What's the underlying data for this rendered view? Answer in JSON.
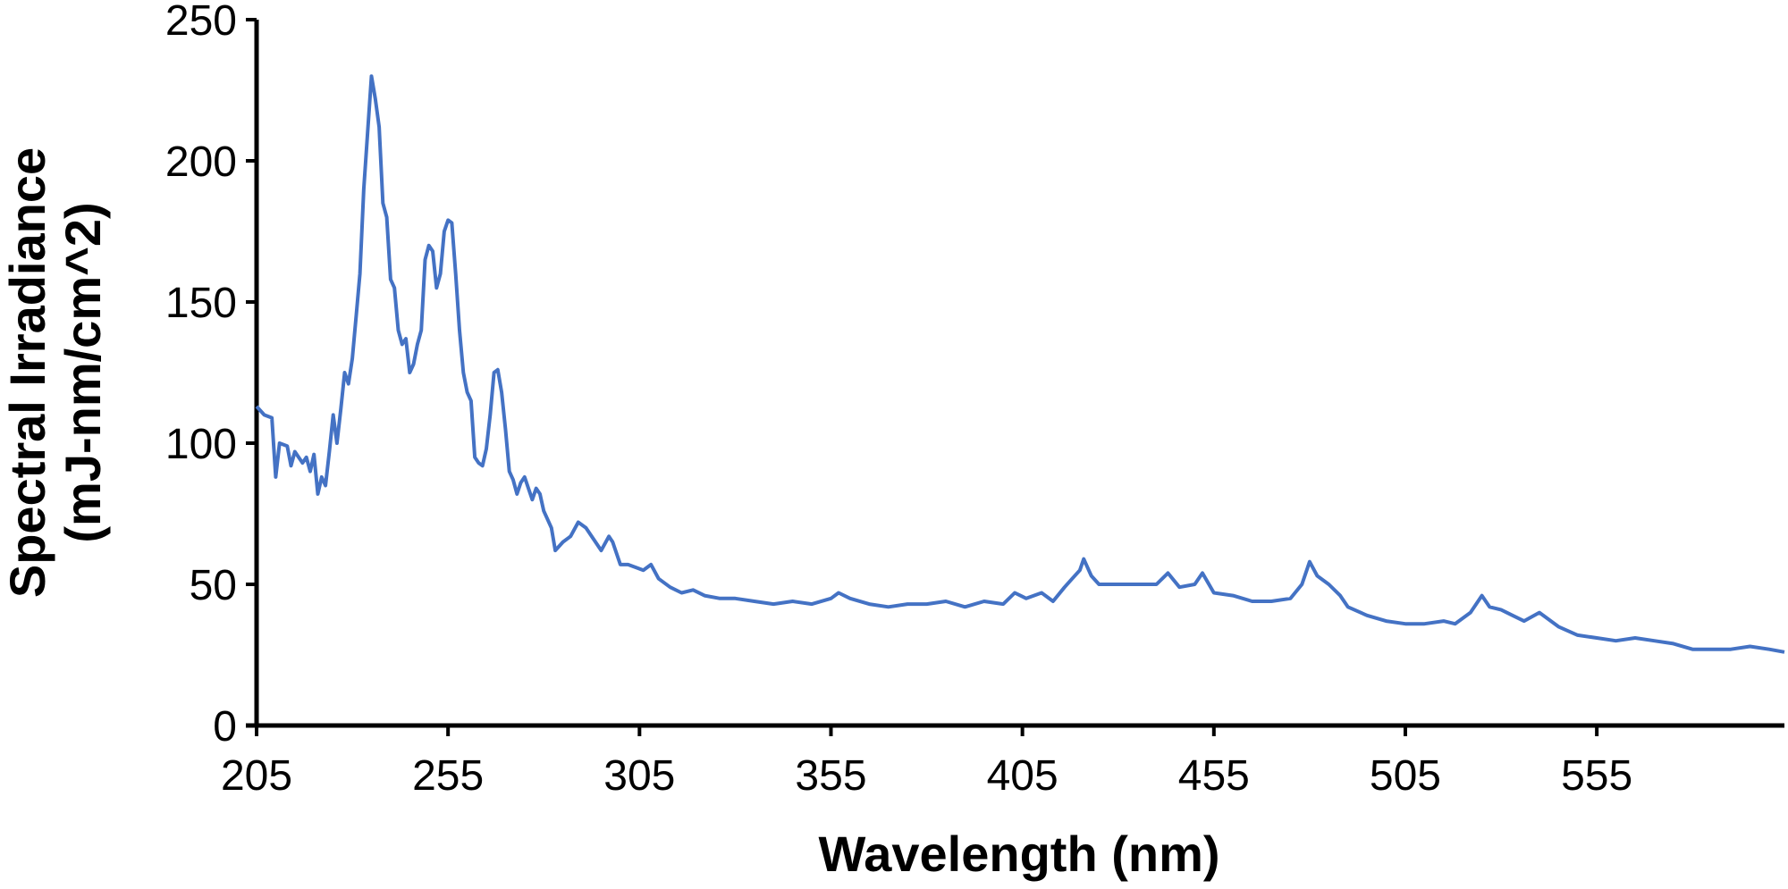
{
  "chart_data": {
    "type": "line",
    "x_label": "Wavelength (nm)",
    "y_label": [
      "Spectral Irradiance",
      "(mJ-nm/cm^2)"
    ],
    "xlim": [
      205,
      604
    ],
    "xticks": [
      205,
      255,
      305,
      355,
      405,
      455,
      505,
      555
    ],
    "ylim": [
      0,
      250
    ],
    "yticks": [
      0,
      50,
      100,
      150,
      200,
      250
    ],
    "grid": false,
    "series": [
      {
        "name": "Spectral irradiance",
        "color": "#4472c4",
        "x": [
          205,
          207,
          209,
          210,
          211,
          213,
          214,
          215,
          217,
          218,
          219,
          220,
          221,
          222,
          223,
          224,
          225,
          226,
          227,
          228,
          229,
          230,
          231,
          232,
          233,
          234,
          235,
          236,
          237,
          238,
          239,
          240,
          241,
          242,
          243,
          244,
          245,
          246,
          247,
          248,
          249,
          250,
          251,
          252,
          253,
          254,
          255,
          256,
          257,
          258,
          259,
          260,
          261,
          262,
          263,
          264,
          265,
          266,
          267,
          268,
          269,
          270,
          271,
          272,
          273,
          274,
          275,
          276,
          277,
          278,
          279,
          280,
          282,
          283,
          285,
          287,
          289,
          291,
          293,
          295,
          297,
          298,
          300,
          302,
          304,
          306,
          308,
          310,
          313,
          316,
          319,
          322,
          326,
          330,
          335,
          340,
          345,
          350,
          355,
          357,
          360,
          365,
          370,
          375,
          380,
          385,
          390,
          395,
          400,
          403,
          406,
          410,
          413,
          416,
          418,
          420,
          421,
          423,
          425,
          430,
          435,
          440,
          443,
          446,
          450,
          452,
          455,
          460,
          465,
          470,
          475,
          478,
          480,
          482,
          485,
          488,
          490,
          495,
          500,
          505,
          510,
          515,
          518,
          522,
          525,
          527,
          530,
          533,
          536,
          540,
          542,
          545,
          550,
          555,
          560,
          565,
          570,
          575,
          580,
          585,
          590,
          595,
          600,
          604
        ],
        "values": [
          113,
          110,
          109,
          88,
          100,
          99,
          92,
          97,
          93,
          95,
          90,
          96,
          82,
          88,
          85,
          97,
          110,
          100,
          112,
          125,
          121,
          130,
          145,
          160,
          190,
          210,
          230,
          222,
          212,
          185,
          180,
          158,
          155,
          140,
          135,
          137,
          125,
          128,
          135,
          140,
          165,
          170,
          168,
          155,
          160,
          175,
          179,
          178,
          160,
          140,
          125,
          118,
          115,
          95,
          93,
          92,
          98,
          110,
          125,
          126,
          118,
          105,
          90,
          87,
          82,
          86,
          88,
          84,
          80,
          84,
          82,
          76,
          70,
          62,
          65,
          67,
          72,
          70,
          66,
          62,
          67,
          65,
          57,
          57,
          56,
          55,
          57,
          52,
          49,
          47,
          48,
          46,
          45,
          45,
          44,
          43,
          44,
          43,
          45,
          47,
          45,
          43,
          42,
          43,
          43,
          44,
          42,
          44,
          43,
          47,
          45,
          47,
          44,
          49,
          52,
          55,
          59,
          53,
          50,
          50,
          50,
          50,
          54,
          49,
          50,
          54,
          47,
          46,
          44,
          44,
          45,
          50,
          58,
          53,
          50,
          46,
          42,
          39,
          37,
          36,
          36,
          37,
          36,
          40,
          46,
          42,
          41,
          39,
          37,
          40,
          38,
          35,
          32,
          31,
          30,
          31,
          30,
          29,
          27,
          27,
          27,
          28,
          27,
          26
        ]
      }
    ]
  }
}
